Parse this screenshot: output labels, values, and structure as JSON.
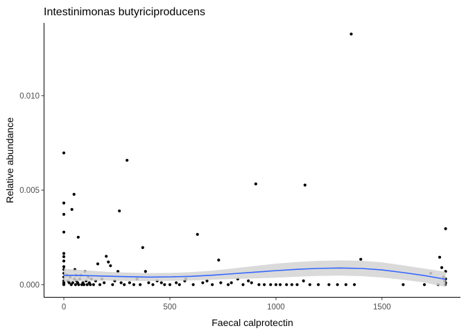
{
  "chart_data": {
    "type": "scatter",
    "title": "Intestinimonas butyriciproducens",
    "xlabel": "Faecal calprotectin",
    "ylabel": "Relative abundance",
    "xlim": [
      -95,
      1870
    ],
    "ylim": [
      -0.00065,
      0.01385
    ],
    "x_ticks": [
      0,
      500,
      1000,
      1500
    ],
    "x_tick_labels": [
      "0",
      "500",
      "1000",
      "1500"
    ],
    "y_ticks": [
      0.0,
      0.005,
      0.01
    ],
    "y_tick_labels": [
      "0.000",
      "0.005",
      "0.010"
    ],
    "grid": false,
    "legend": "none",
    "point_color": "#000000",
    "smooth_color": "#3366ff",
    "ribbon_color": "#d3d3d3",
    "points": [
      [
        0,
        0.00697
      ],
      [
        0,
        0.00432
      ],
      [
        0,
        0.00372
      ],
      [
        0,
        0.00278
      ],
      [
        0,
        0.00165
      ],
      [
        0,
        0.00148
      ],
      [
        0,
        0.00125
      ],
      [
        0,
        0.00095
      ],
      [
        0,
        0.0008
      ],
      [
        0,
        0.0006
      ],
      [
        0,
        0.0004
      ],
      [
        0,
        0.0002
      ],
      [
        0,
        0.0001
      ],
      [
        0,
        5e-05
      ],
      [
        0,
        0.0
      ],
      [
        15,
        0.0005
      ],
      [
        20,
        0.0002
      ],
      [
        25,
        0.0001
      ],
      [
        30,
        0.0004
      ],
      [
        35,
        0.0
      ],
      [
        38,
        0.00398
      ],
      [
        42,
        0.0001
      ],
      [
        48,
        0.00478
      ],
      [
        50,
        0.0003
      ],
      [
        52,
        0.0008
      ],
      [
        55,
        0.0
      ],
      [
        58,
        0.0005
      ],
      [
        60,
        0.0002
      ],
      [
        65,
        0.0001
      ],
      [
        68,
        0.00251
      ],
      [
        70,
        0.0
      ],
      [
        75,
        0.0003
      ],
      [
        80,
        0.0005
      ],
      [
        85,
        0.0
      ],
      [
        90,
        0.0001
      ],
      [
        95,
        0.0
      ],
      [
        100,
        0.0007
      ],
      [
        105,
        0.0002
      ],
      [
        110,
        0.0
      ],
      [
        115,
        0.0004
      ],
      [
        120,
        0.0001
      ],
      [
        125,
        0.0
      ],
      [
        130,
        0.0003
      ],
      [
        140,
        0.0
      ],
      [
        150,
        0.0002
      ],
      [
        160,
        0.0011
      ],
      [
        170,
        0.0
      ],
      [
        180,
        0.0003
      ],
      [
        190,
        0.0001
      ],
      [
        200,
        0.0015
      ],
      [
        210,
        0.0012
      ],
      [
        220,
        0.001
      ],
      [
        230,
        0.0
      ],
      [
        240,
        0.0002
      ],
      [
        255,
        0.0007
      ],
      [
        262,
        0.0039
      ],
      [
        270,
        0.0001
      ],
      [
        285,
        0.0
      ],
      [
        298,
        0.00658
      ],
      [
        310,
        0.0001
      ],
      [
        330,
        0.0
      ],
      [
        345,
        0.0003
      ],
      [
        360,
        0.0
      ],
      [
        372,
        0.00196
      ],
      [
        385,
        0.0007
      ],
      [
        400,
        0.0001
      ],
      [
        420,
        0.0
      ],
      [
        440,
        0.0002
      ],
      [
        460,
        0.0001
      ],
      [
        475,
        0.0
      ],
      [
        500,
        0.0
      ],
      [
        530,
        0.0001
      ],
      [
        545,
        0.0
      ],
      [
        570,
        0.0002
      ],
      [
        575,
        0.0003
      ],
      [
        610,
        0.0
      ],
      [
        630,
        0.00266
      ],
      [
        655,
        0.0001
      ],
      [
        675,
        0.0002
      ],
      [
        700,
        0.0
      ],
      [
        730,
        0.0013
      ],
      [
        740,
        0.0001
      ],
      [
        775,
        0.0
      ],
      [
        790,
        0.0001
      ],
      [
        820,
        0.0003
      ],
      [
        845,
        0.0
      ],
      [
        870,
        0.0002
      ],
      [
        885,
        0.0001
      ],
      [
        905,
        0.00533
      ],
      [
        920,
        0.0
      ],
      [
        945,
        0.0
      ],
      [
        975,
        0.0
      ],
      [
        1000,
        0.0
      ],
      [
        1020,
        0.0
      ],
      [
        1050,
        0.0
      ],
      [
        1075,
        0.0
      ],
      [
        1100,
        0.0
      ],
      [
        1130,
        0.0002
      ],
      [
        1137,
        0.00527
      ],
      [
        1160,
        0.0
      ],
      [
        1200,
        0.0
      ],
      [
        1250,
        0.0
      ],
      [
        1290,
        0.0
      ],
      [
        1330,
        0.0
      ],
      [
        1355,
        0.01326
      ],
      [
        1370,
        0.0
      ],
      [
        1400,
        0.00134
      ],
      [
        1600,
        0.0
      ],
      [
        1700,
        0.0
      ],
      [
        1730,
        0.0006
      ],
      [
        1765,
        0.0
      ],
      [
        1772,
        0.00145
      ],
      [
        1782,
        0.0009
      ],
      [
        1790,
        0.0004
      ],
      [
        1795,
        0.0002
      ],
      [
        1798,
        0.0
      ],
      [
        1800,
        0.00296
      ],
      [
        1800,
        0.0007
      ],
      [
        1800,
        0.0003
      ],
      [
        1800,
        0.0001
      ]
    ],
    "smooth_line": {
      "x": [
        0,
        100,
        200,
        300,
        400,
        500,
        600,
        700,
        800,
        900,
        1000,
        1100,
        1200,
        1300,
        1400,
        1500,
        1600,
        1700,
        1800
      ],
      "y": [
        0.0005,
        0.00048,
        0.00045,
        0.00042,
        0.0004,
        0.00041,
        0.00044,
        0.0005,
        0.00058,
        0.00066,
        0.00074,
        0.00081,
        0.00086,
        0.00088,
        0.00086,
        0.00078,
        0.00064,
        0.00048,
        0.00028
      ],
      "ribbon_lower": [
        0.00016,
        0.0002,
        0.00022,
        0.0002,
        0.00019,
        0.0002,
        0.00022,
        0.00026,
        0.0003,
        0.00033,
        0.00037,
        0.00042,
        0.00046,
        0.00048,
        0.00045,
        0.00038,
        0.00026,
        0.00011,
        -0.00012
      ],
      "ribbon_upper": [
        0.00084,
        0.00076,
        0.00068,
        0.00064,
        0.00061,
        0.00062,
        0.00066,
        0.00074,
        0.00086,
        0.00099,
        0.00111,
        0.0012,
        0.00126,
        0.00128,
        0.00127,
        0.00118,
        0.00102,
        0.00085,
        0.00068
      ]
    }
  }
}
